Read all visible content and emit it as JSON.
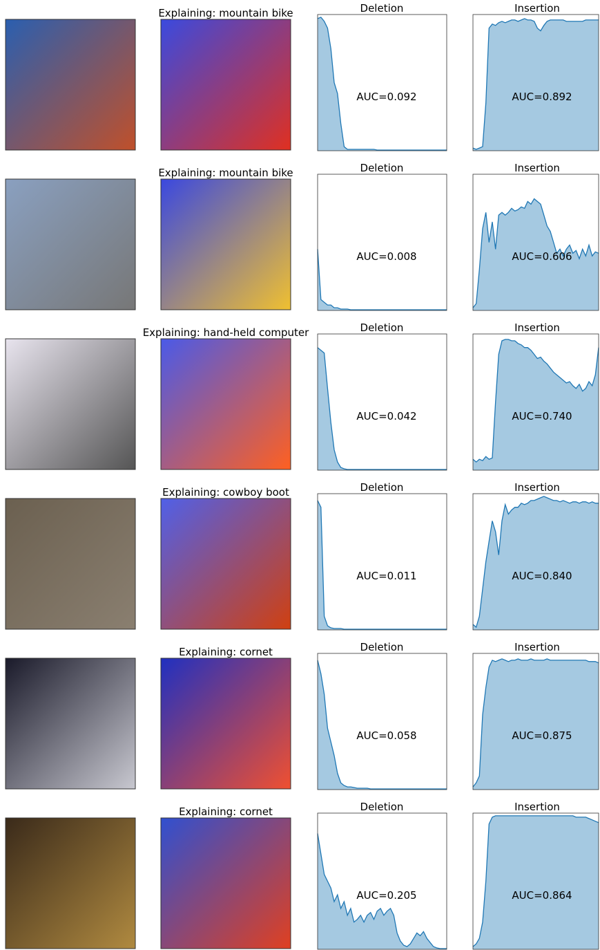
{
  "rows": [
    {
      "title": "Explaining: mountain bike"
    },
    {
      "title": "Explaining: mountain bike"
    },
    {
      "title": "Explaining: hand-held computer"
    },
    {
      "title": "Explaining: cowboy boot"
    },
    {
      "title": "Explaining: cornet"
    },
    {
      "title": "Explaining: cornet"
    }
  ],
  "chart_data": [
    {
      "type": "area",
      "title": "Deletion",
      "annotation": "AUC=0.092",
      "color": "#1f77b4",
      "ylim": [
        0,
        1
      ],
      "values": [
        0.97,
        0.98,
        0.95,
        0.9,
        0.75,
        0.5,
        0.42,
        0.2,
        0.03,
        0.01,
        0.01,
        0.01,
        0.01,
        0.01,
        0.01,
        0.01,
        0.01,
        0.01,
        0.005,
        0.005,
        0.005,
        0.005,
        0.005,
        0.005,
        0.005,
        0.005,
        0.005,
        0.005,
        0.005,
        0.005,
        0.005,
        0.005,
        0.005,
        0.005,
        0.005,
        0.005,
        0.005,
        0.005,
        0.005,
        0.005
      ]
    },
    {
      "type": "area",
      "title": "Insertion",
      "annotation": "AUC=0.892",
      "color": "#1f77b4",
      "ylim": [
        0,
        1
      ],
      "values": [
        0.02,
        0.01,
        0.02,
        0.03,
        0.35,
        0.9,
        0.93,
        0.92,
        0.94,
        0.95,
        0.94,
        0.95,
        0.96,
        0.96,
        0.95,
        0.96,
        0.97,
        0.96,
        0.96,
        0.95,
        0.9,
        0.88,
        0.92,
        0.95,
        0.96,
        0.96,
        0.96,
        0.96,
        0.96,
        0.95,
        0.95,
        0.95,
        0.95,
        0.95,
        0.95,
        0.96,
        0.96,
        0.96,
        0.96,
        0.96
      ]
    },
    {
      "type": "area",
      "title": "Deletion",
      "annotation": "AUC=0.008",
      "color": "#1f77b4",
      "ylim": [
        0,
        1
      ],
      "values": [
        0.45,
        0.08,
        0.06,
        0.04,
        0.04,
        0.02,
        0.02,
        0.01,
        0.01,
        0.01,
        0.005,
        0.005,
        0.005,
        0.005,
        0.005,
        0.005,
        0.005,
        0.005,
        0.005,
        0.005,
        0.005,
        0.005,
        0.005,
        0.005,
        0.005,
        0.005,
        0.005,
        0.005,
        0.005,
        0.005,
        0.005,
        0.005,
        0.005,
        0.005,
        0.005,
        0.005,
        0.005,
        0.005,
        0.005,
        0.005
      ]
    },
    {
      "type": "area",
      "title": "Insertion",
      "annotation": "AUC=0.606",
      "color": "#1f77b4",
      "ylim": [
        0,
        1
      ],
      "values": [
        0.02,
        0.05,
        0.3,
        0.6,
        0.72,
        0.5,
        0.65,
        0.45,
        0.7,
        0.72,
        0.7,
        0.72,
        0.75,
        0.73,
        0.74,
        0.76,
        0.75,
        0.8,
        0.78,
        0.82,
        0.8,
        0.78,
        0.7,
        0.62,
        0.58,
        0.5,
        0.42,
        0.45,
        0.4,
        0.45,
        0.48,
        0.42,
        0.44,
        0.38,
        0.45,
        0.4,
        0.48,
        0.4,
        0.43,
        0.42
      ]
    },
    {
      "type": "area",
      "title": "Deletion",
      "annotation": "AUC=0.042",
      "color": "#1f77b4",
      "ylim": [
        0,
        1
      ],
      "values": [
        0.9,
        0.88,
        0.86,
        0.6,
        0.35,
        0.15,
        0.06,
        0.02,
        0.01,
        0.005,
        0.005,
        0.005,
        0.005,
        0.005,
        0.005,
        0.005,
        0.005,
        0.005,
        0.005,
        0.005,
        0.005,
        0.005,
        0.005,
        0.005,
        0.005,
        0.005,
        0.005,
        0.005,
        0.005,
        0.005,
        0.005,
        0.005,
        0.005,
        0.005,
        0.005,
        0.005,
        0.005,
        0.005,
        0.005,
        0.005
      ]
    },
    {
      "type": "area",
      "title": "Insertion",
      "annotation": "AUC=0.740",
      "color": "#1f77b4",
      "ylim": [
        0,
        1
      ],
      "values": [
        0.08,
        0.06,
        0.08,
        0.07,
        0.1,
        0.08,
        0.09,
        0.5,
        0.85,
        0.95,
        0.96,
        0.96,
        0.95,
        0.95,
        0.93,
        0.92,
        0.9,
        0.9,
        0.88,
        0.85,
        0.82,
        0.83,
        0.8,
        0.78,
        0.75,
        0.72,
        0.7,
        0.68,
        0.66,
        0.64,
        0.65,
        0.62,
        0.6,
        0.63,
        0.58,
        0.6,
        0.65,
        0.62,
        0.7,
        0.9
      ]
    },
    {
      "type": "area",
      "title": "Deletion",
      "annotation": "AUC=0.011",
      "color": "#1f77b4",
      "ylim": [
        0,
        1
      ],
      "values": [
        0.95,
        0.9,
        0.1,
        0.03,
        0.015,
        0.01,
        0.01,
        0.01,
        0.005,
        0.005,
        0.005,
        0.005,
        0.005,
        0.005,
        0.005,
        0.005,
        0.005,
        0.005,
        0.005,
        0.005,
        0.005,
        0.005,
        0.005,
        0.005,
        0.005,
        0.005,
        0.005,
        0.005,
        0.005,
        0.005,
        0.005,
        0.005,
        0.005,
        0.005,
        0.005,
        0.005,
        0.005,
        0.005,
        0.005,
        0.005
      ]
    },
    {
      "type": "area",
      "title": "Insertion",
      "annotation": "AUC=0.840",
      "color": "#1f77b4",
      "ylim": [
        0,
        1
      ],
      "values": [
        0.04,
        0.02,
        0.1,
        0.3,
        0.5,
        0.65,
        0.8,
        0.72,
        0.55,
        0.8,
        0.92,
        0.85,
        0.88,
        0.9,
        0.9,
        0.93,
        0.92,
        0.93,
        0.95,
        0.95,
        0.96,
        0.97,
        0.98,
        0.97,
        0.96,
        0.95,
        0.95,
        0.94,
        0.95,
        0.94,
        0.93,
        0.94,
        0.94,
        0.93,
        0.94,
        0.94,
        0.93,
        0.94,
        0.93,
        0.93
      ]
    },
    {
      "type": "area",
      "title": "Deletion",
      "annotation": "AUC=0.058",
      "color": "#1f77b4",
      "ylim": [
        0,
        1
      ],
      "values": [
        0.95,
        0.85,
        0.7,
        0.45,
        0.35,
        0.25,
        0.12,
        0.05,
        0.03,
        0.02,
        0.02,
        0.015,
        0.01,
        0.01,
        0.01,
        0.01,
        0.005,
        0.005,
        0.005,
        0.005,
        0.005,
        0.005,
        0.005,
        0.005,
        0.005,
        0.005,
        0.005,
        0.005,
        0.005,
        0.005,
        0.005,
        0.005,
        0.005,
        0.005,
        0.005,
        0.005,
        0.005,
        0.005,
        0.005,
        0.005
      ]
    },
    {
      "type": "area",
      "title": "Insertion",
      "annotation": "AUC=0.875",
      "color": "#1f77b4",
      "ylim": [
        0,
        1
      ],
      "values": [
        0.02,
        0.05,
        0.1,
        0.55,
        0.75,
        0.9,
        0.95,
        0.94,
        0.95,
        0.96,
        0.95,
        0.94,
        0.95,
        0.95,
        0.96,
        0.95,
        0.95,
        0.95,
        0.96,
        0.95,
        0.95,
        0.95,
        0.95,
        0.96,
        0.95,
        0.95,
        0.95,
        0.95,
        0.95,
        0.95,
        0.95,
        0.95,
        0.95,
        0.95,
        0.95,
        0.95,
        0.94,
        0.94,
        0.94,
        0.93
      ]
    },
    {
      "type": "area",
      "title": "Deletion",
      "annotation": "AUC=0.205",
      "color": "#1f77b4",
      "ylim": [
        0,
        1
      ],
      "values": [
        0.85,
        0.7,
        0.55,
        0.5,
        0.45,
        0.35,
        0.4,
        0.3,
        0.35,
        0.25,
        0.3,
        0.2,
        0.22,
        0.25,
        0.2,
        0.25,
        0.27,
        0.22,
        0.28,
        0.3,
        0.25,
        0.28,
        0.3,
        0.25,
        0.12,
        0.06,
        0.03,
        0.02,
        0.04,
        0.08,
        0.12,
        0.1,
        0.13,
        0.08,
        0.05,
        0.02,
        0.01,
        0.005,
        0.005,
        0.005
      ]
    },
    {
      "type": "area",
      "title": "Insertion",
      "annotation": "AUC=0.864",
      "color": "#1f77b4",
      "ylim": [
        0,
        1
      ],
      "values": [
        0.02,
        0.04,
        0.08,
        0.2,
        0.5,
        0.92,
        0.97,
        0.98,
        0.98,
        0.98,
        0.98,
        0.98,
        0.98,
        0.98,
        0.98,
        0.98,
        0.98,
        0.98,
        0.98,
        0.98,
        0.98,
        0.98,
        0.98,
        0.98,
        0.98,
        0.98,
        0.98,
        0.98,
        0.98,
        0.98,
        0.98,
        0.98,
        0.97,
        0.97,
        0.97,
        0.97,
        0.96,
        0.95,
        0.94,
        0.93
      ]
    }
  ]
}
